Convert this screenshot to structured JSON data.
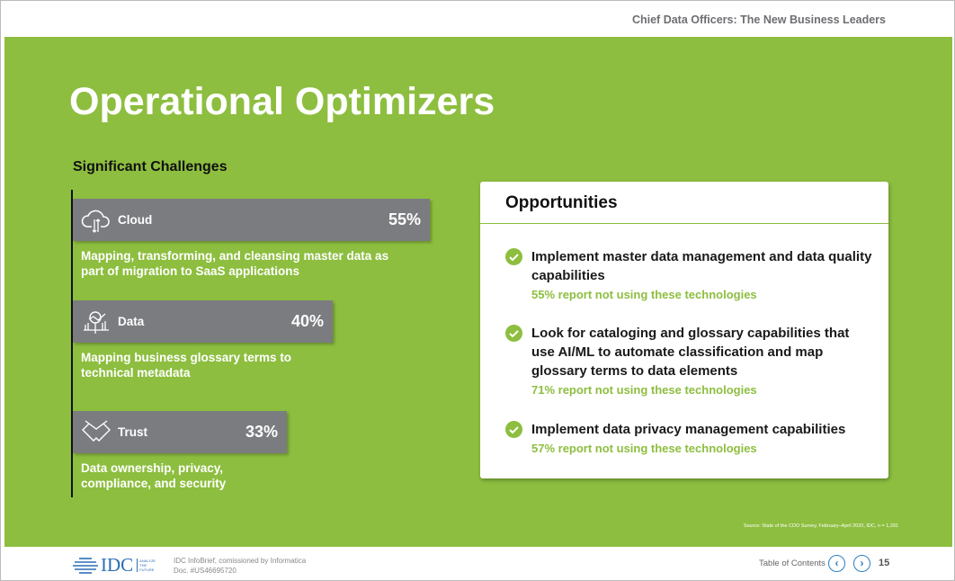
{
  "header": {
    "doc_title": "Chief Data Officers: The New Business Leaders"
  },
  "page_title": "Operational Optimizers",
  "challenges": {
    "heading": "Significant Challenges",
    "items": [
      {
        "label": "Cloud",
        "percent": "55%",
        "value": 55,
        "icon": "cloud-upload-download-icon",
        "description": "Mapping, transforming, and cleansing master data as part of migration to SaaS applications"
      },
      {
        "label": "Data",
        "percent": "40%",
        "value": 40,
        "icon": "data-analytics-icon",
        "description": "Mapping business glossary terms to technical metadata"
      },
      {
        "label": "Trust",
        "percent": "33%",
        "value": 33,
        "icon": "handshake-icon",
        "description": "Data ownership, privacy, compliance, and security"
      }
    ]
  },
  "opportunities": {
    "heading": "Opportunities",
    "items": [
      {
        "text": "Implement master data management and data quality capabilities",
        "stat": "55% report not using these technologies"
      },
      {
        "text": "Look for cataloging and glossary capabilities that use AI/ML to automate classification and map glossary terms to data elements",
        "stat": "71% report not using these technologies"
      },
      {
        "text": "Implement data privacy management capabilities",
        "stat": "57% report not using these technologies"
      }
    ]
  },
  "source": "Source: State of the CDO Survey, February–April 2020, IDC, n = 1,291",
  "footer": {
    "logo_text": "IDC",
    "tagline": "ANALYZE THE FUTURE",
    "doc_line1": "IDC InfoBrief, comissioned by Informatica",
    "doc_line2": "Doc. #US46695720",
    "toc": "Table of Contents",
    "prev": "‹",
    "next": "›",
    "page": "15"
  },
  "colors": {
    "green": "#8dbe3f",
    "bar": "#7b7c80",
    "link": "#2a7fc1"
  }
}
